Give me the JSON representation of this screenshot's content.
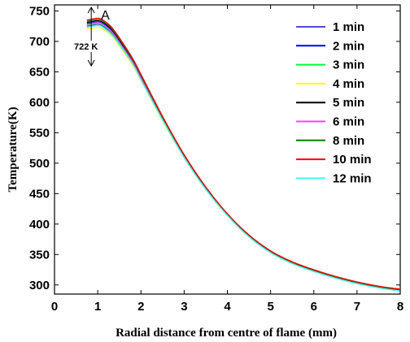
{
  "chart_data": {
    "type": "line",
    "xlabel": "Radial distance from centre of flame (mm)",
    "ylabel": "Temperature(K)",
    "xlim": [
      0,
      8
    ],
    "ylim": [
      285,
      760
    ],
    "xticks": [
      0,
      1,
      2,
      3,
      4,
      5,
      6,
      7,
      8
    ],
    "yticks": [
      300,
      350,
      400,
      450,
      500,
      550,
      600,
      650,
      700,
      750
    ],
    "legend_position": "top-right",
    "grid": false,
    "annotations": [
      {
        "text": "A",
        "x": 1.0,
        "y": 750
      },
      {
        "text": "722 K",
        "x": 0.85,
        "y": 722
      }
    ],
    "series": [
      {
        "name": "1 min",
        "color": "#4b4bd6",
        "x": [
          0.75,
          0.9,
          1.0,
          1.1,
          1.3,
          1.5,
          1.8,
          2.0,
          2.5,
          3.0,
          3.5,
          4.0,
          4.5,
          5.0,
          5.5,
          6.0,
          6.5,
          7.0,
          7.5,
          8.0
        ],
        "y": [
          725,
          727,
          728,
          726,
          715,
          697,
          665,
          638,
          572,
          510,
          458,
          415,
          380,
          354,
          336,
          323,
          312,
          303,
          296,
          291
        ]
      },
      {
        "name": "2 min",
        "color": "#0000ff",
        "x": [
          0.75,
          0.9,
          1.0,
          1.1,
          1.3,
          1.5,
          1.8,
          2.0,
          2.5,
          3.0,
          3.5,
          4.0,
          4.5,
          5.0,
          5.5,
          6.0,
          6.5,
          7.0,
          7.5,
          8.0
        ],
        "y": [
          729,
          731,
          732,
          730,
          719,
          700,
          667,
          640,
          573,
          511,
          459,
          415,
          380,
          354,
          336,
          323,
          312,
          303,
          296,
          291
        ]
      },
      {
        "name": "3 min",
        "color": "#00ff40",
        "x": [
          0.75,
          0.9,
          1.0,
          1.1,
          1.3,
          1.5,
          1.8,
          2.0,
          2.5,
          3.0,
          3.5,
          4.0,
          4.5,
          5.0,
          5.5,
          6.0,
          6.5,
          7.0,
          7.5,
          8.0
        ],
        "y": [
          727,
          729,
          730,
          728,
          717,
          698,
          666,
          639,
          572,
          510,
          458,
          415,
          380,
          354,
          336,
          323,
          312,
          303,
          296,
          291
        ]
      },
      {
        "name": "4 min",
        "color": "#ffff00",
        "x": [
          0.75,
          0.9,
          1.0,
          1.1,
          1.3,
          1.5,
          1.8,
          2.0,
          2.5,
          3.0,
          3.5,
          4.0,
          4.5,
          5.0,
          5.5,
          6.0,
          6.5,
          7.0,
          7.5,
          8.0
        ],
        "y": [
          720,
          722,
          723,
          721,
          711,
          693,
          662,
          636,
          570,
          509,
          457,
          414,
          379,
          353,
          335,
          322,
          311,
          302,
          295,
          290
        ]
      },
      {
        "name": "5 min",
        "color": "#000000",
        "x": [
          0.75,
          0.9,
          1.0,
          1.1,
          1.3,
          1.5,
          1.8,
          2.0,
          2.5,
          3.0,
          3.5,
          4.0,
          4.5,
          5.0,
          5.5,
          6.0,
          6.5,
          7.0,
          7.5,
          8.0
        ],
        "y": [
          731,
          733,
          734,
          732,
          721,
          702,
          669,
          642,
          574,
          512,
          459,
          416,
          381,
          355,
          337,
          324,
          313,
          304,
          297,
          292
        ]
      },
      {
        "name": "6 min",
        "color": "#ff40ff",
        "x": [
          0.75,
          0.9,
          1.0,
          1.1,
          1.3,
          1.5,
          1.8,
          2.0,
          2.5,
          3.0,
          3.5,
          4.0,
          4.5,
          5.0,
          5.5,
          6.0,
          6.5,
          7.0,
          7.5,
          8.0
        ],
        "y": [
          728,
          730,
          731,
          729,
          718,
          699,
          667,
          640,
          573,
          511,
          459,
          415,
          380,
          354,
          336,
          323,
          312,
          303,
          296,
          291
        ]
      },
      {
        "name": "8 min",
        "color": "#008000",
        "x": [
          0.75,
          0.9,
          1.0,
          1.1,
          1.3,
          1.5,
          1.8,
          2.0,
          2.5,
          3.0,
          3.5,
          4.0,
          4.5,
          5.0,
          5.5,
          6.0,
          6.5,
          7.0,
          7.5,
          8.0
        ],
        "y": [
          733,
          735,
          736,
          734,
          723,
          704,
          671,
          644,
          575,
          513,
          460,
          416,
          381,
          355,
          337,
          324,
          313,
          304,
          297,
          292
        ]
      },
      {
        "name": "10 min",
        "color": "#ff0000",
        "x": [
          0.75,
          0.9,
          1.0,
          1.1,
          1.3,
          1.5,
          1.8,
          2.0,
          2.5,
          3.0,
          3.5,
          4.0,
          4.5,
          5.0,
          5.5,
          6.0,
          6.5,
          7.0,
          7.5,
          8.0
        ],
        "y": [
          735,
          737,
          738,
          736,
          725,
          706,
          673,
          646,
          577,
          514,
          461,
          417,
          382,
          356,
          338,
          325,
          314,
          305,
          298,
          293
        ]
      },
      {
        "name": "12 min",
        "color": "#40ffff",
        "x": [
          0.75,
          0.9,
          1.0,
          1.1,
          1.3,
          1.5,
          1.8,
          2.0,
          2.5,
          3.0,
          3.5,
          4.0,
          4.5,
          5.0,
          5.5,
          6.0,
          6.5,
          7.0,
          7.5,
          8.0
        ],
        "y": [
          723,
          725,
          726,
          724,
          713,
          695,
          664,
          637,
          571,
          509,
          457,
          414,
          379,
          353,
          335,
          322,
          311,
          302,
          295,
          290
        ]
      }
    ]
  }
}
